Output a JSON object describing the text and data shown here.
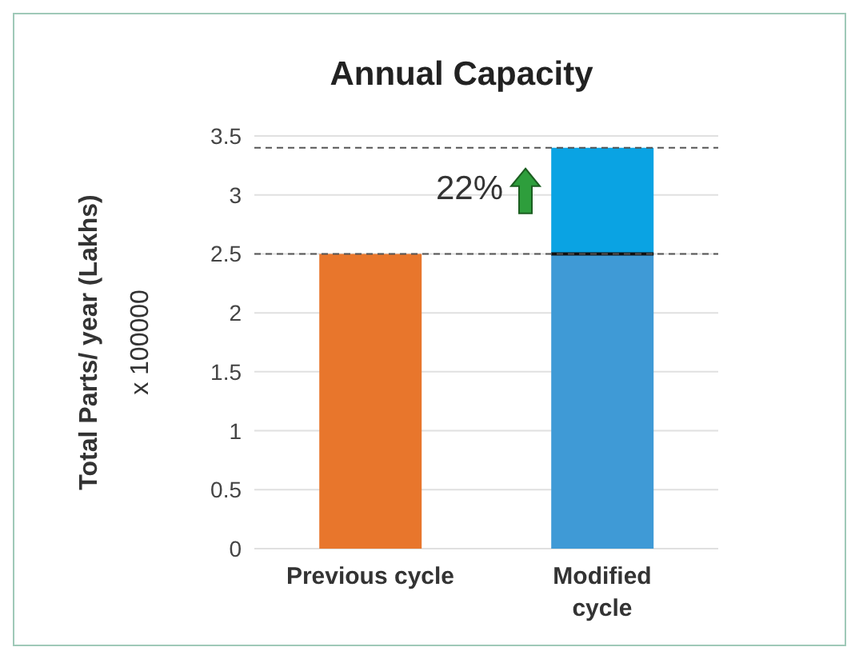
{
  "chart_data": {
    "type": "bar",
    "title": "Annual Capacity",
    "ylabel": "Total Parts/ year (Lakhs)",
    "annotations": [
      "x 100000",
      "22%"
    ],
    "categories": [
      "Previous cycle",
      "Modified cycle"
    ],
    "stacked": true,
    "series": [
      {
        "colors": [
          "#e8762c",
          "#3f9ad6"
        ],
        "color": "#3f9ad6",
        "values": [
          2.5,
          2.5
        ]
      },
      {
        "color": "#0aa3e3",
        "values": [
          null,
          0.9
        ]
      }
    ],
    "ylim": [
      0,
      3.5
    ],
    "yticks": [
      0,
      0.5,
      1,
      1.5,
      2,
      2.5,
      3,
      3.5
    ],
    "grid": "y",
    "ref_lines": [
      {
        "axis": "y",
        "value": 2.5,
        "color": "#555555",
        "line_style": "dashed"
      },
      {
        "axis": "y",
        "value": 3.4,
        "color": "#555555",
        "line_style": "dashed"
      }
    ]
  }
}
